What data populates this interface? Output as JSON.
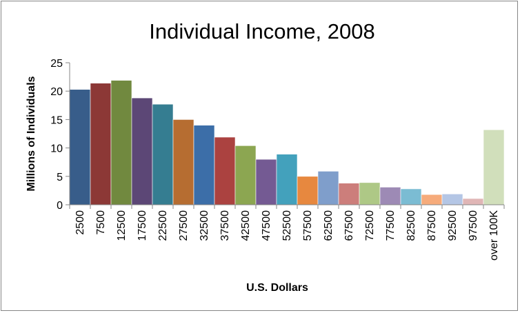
{
  "chart_data": {
    "type": "bar",
    "title": "Individual Income, 2008",
    "xlabel": "U.S. Dollars",
    "ylabel": "Millions of Individuals",
    "ylim": [
      0,
      25
    ],
    "yticks": [
      0,
      5,
      10,
      15,
      20,
      25
    ],
    "grid": false,
    "legend": "none",
    "categories": [
      "2500",
      "7500",
      "12500",
      "17500",
      "22500",
      "27500",
      "32500",
      "37500",
      "42500",
      "47500",
      "52500",
      "57500",
      "62500",
      "67500",
      "72500",
      "77500",
      "82500",
      "87500",
      "92500",
      "97500",
      "over 100K"
    ],
    "values": [
      20.3,
      21.4,
      21.9,
      18.8,
      17.7,
      15.0,
      14.0,
      11.9,
      10.4,
      8.0,
      8.9,
      5.0,
      5.9,
      3.8,
      3.9,
      3.1,
      2.8,
      1.8,
      1.9,
      1.1,
      13.2
    ],
    "colors": [
      "#385d8a",
      "#8c3836",
      "#71893f",
      "#5c4776",
      "#357d91",
      "#b66d31",
      "#3c6ea8",
      "#ab4240",
      "#8ca651",
      "#745a93",
      "#43a1bc",
      "#e7883f",
      "#7f9ecb",
      "#cc7e7b",
      "#aec886",
      "#9d8ab5",
      "#7bbcd3",
      "#f6ab7b",
      "#b4c6e5",
      "#e0b6b6",
      "#d1dfbb"
    ]
  }
}
